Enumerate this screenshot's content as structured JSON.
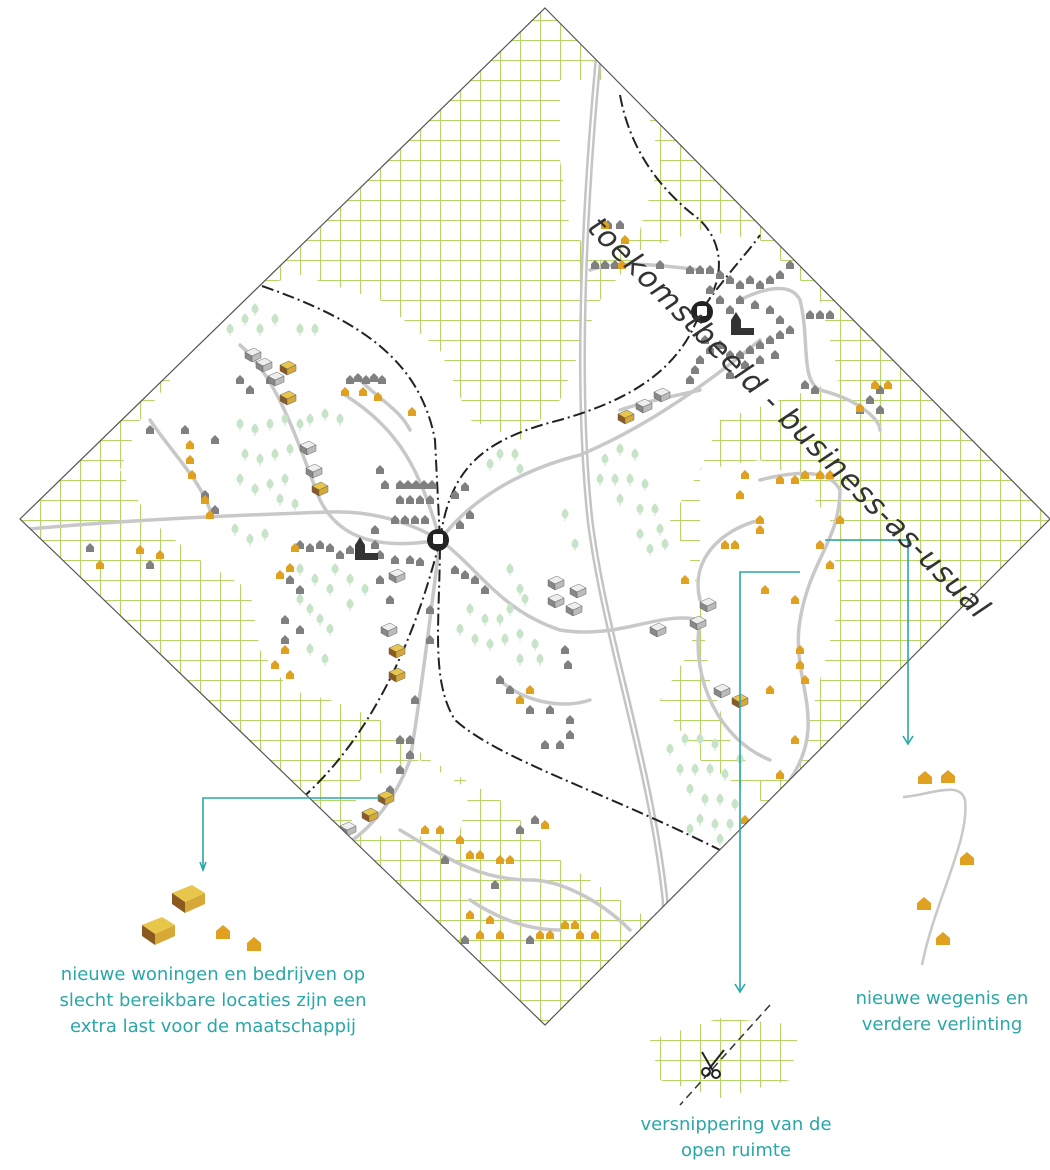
{
  "title": "toekomstbeeld - business-as-usual",
  "captions": {
    "left": "nieuwe woningen en bedrijven op slecht bereikbare locaties zijn een extra last voor de maatschappij",
    "right": "nieuwe wegenis en verdere verlinting",
    "bottom": "versnippering van de open ruimte"
  },
  "colors": {
    "grid": "#b8d36a",
    "teal": "#2aa7a7",
    "new_house": "#e0a020",
    "existing_house": "#808080",
    "tree": "#c8e4c8",
    "road": "#c4c4c4",
    "rail": "#222222"
  },
  "icons": [
    "station-icon",
    "church-icon",
    "scissors-icon",
    "house-icon",
    "tree-icon",
    "business-icon"
  ]
}
